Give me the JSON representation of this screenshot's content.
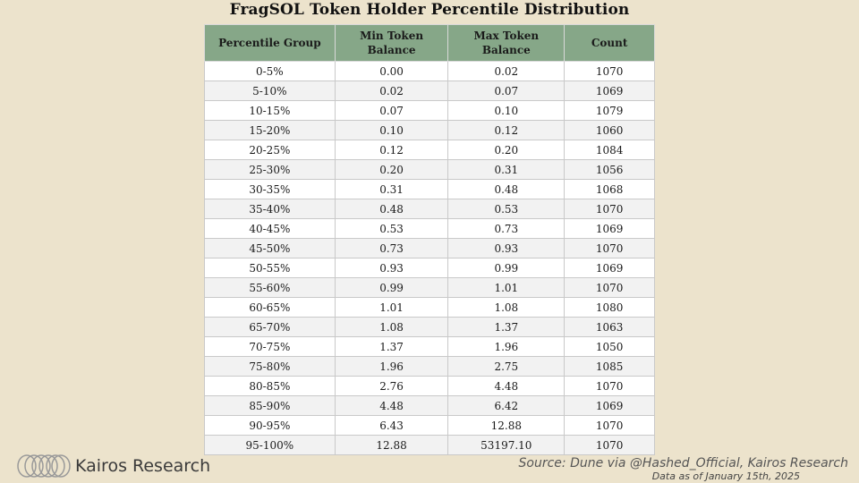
{
  "chart_data": {
    "type": "table",
    "title": "FragSOL Token Holder Percentile Distribution",
    "columns": [
      "Percentile Group",
      "Min Token Balance",
      "Max Token Balance",
      "Count"
    ],
    "rows": [
      [
        "0-5%",
        "0.00",
        "0.02",
        "1070"
      ],
      [
        "5-10%",
        "0.02",
        "0.07",
        "1069"
      ],
      [
        "10-15%",
        "0.07",
        "0.10",
        "1079"
      ],
      [
        "15-20%",
        "0.10",
        "0.12",
        "1060"
      ],
      [
        "20-25%",
        "0.12",
        "0.20",
        "1084"
      ],
      [
        "25-30%",
        "0.20",
        "0.31",
        "1056"
      ],
      [
        "30-35%",
        "0.31",
        "0.48",
        "1068"
      ],
      [
        "35-40%",
        "0.48",
        "0.53",
        "1070"
      ],
      [
        "40-45%",
        "0.53",
        "0.73",
        "1069"
      ],
      [
        "45-50%",
        "0.73",
        "0.93",
        "1070"
      ],
      [
        "50-55%",
        "0.93",
        "0.99",
        "1069"
      ],
      [
        "55-60%",
        "0.99",
        "1.01",
        "1070"
      ],
      [
        "60-65%",
        "1.01",
        "1.08",
        "1080"
      ],
      [
        "65-70%",
        "1.08",
        "1.37",
        "1063"
      ],
      [
        "70-75%",
        "1.37",
        "1.96",
        "1050"
      ],
      [
        "75-80%",
        "1.96",
        "2.75",
        "1085"
      ],
      [
        "80-85%",
        "2.76",
        "4.48",
        "1070"
      ],
      [
        "85-90%",
        "4.48",
        "6.42",
        "1069"
      ],
      [
        "90-95%",
        "6.43",
        "12.88",
        "1070"
      ],
      [
        "95-100%",
        "12.88",
        "53197.10",
        "1070"
      ]
    ]
  },
  "footer": {
    "brand": "Kairos Research",
    "source": "Source: Dune via @Hashed_Official, Kairos Research",
    "as_of": "Data as of January 15th, 2025"
  },
  "colors": {
    "background": "#ece3cc",
    "header": "#86a788",
    "row_stripe": "#f2f2f2"
  },
  "icons": {
    "logo": "kairos-rings-logo"
  }
}
